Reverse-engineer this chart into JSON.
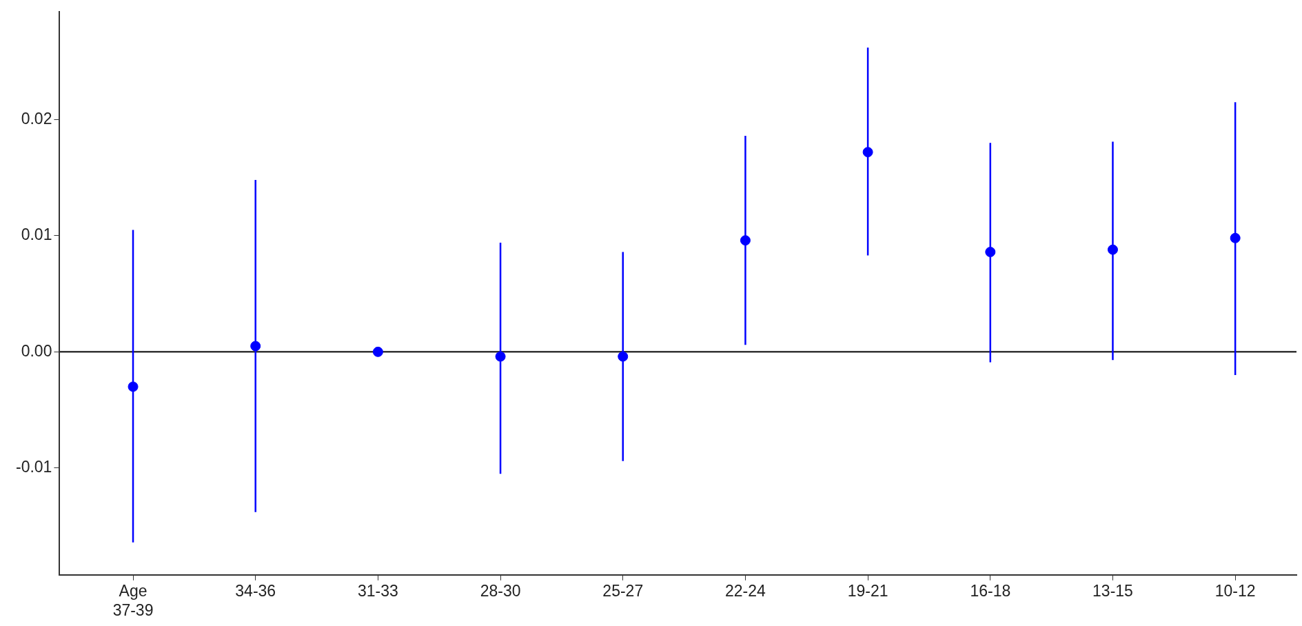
{
  "chart_data": {
    "type": "scatter",
    "categories": [
      "Age\n37-39",
      "34-36",
      "31-33",
      "28-30",
      "25-27",
      "22-24",
      "19-21",
      "16-18",
      "13-15",
      "10-12"
    ],
    "series": [
      {
        "color": "#0000ff",
        "values": [
          -0.003,
          0.0005,
          0,
          -0.0004,
          -0.0004,
          0.0096,
          0.0172,
          0.0086,
          0.0088,
          0.0098
        ],
        "errors": [
          [
            -0.0164,
            0.0105
          ],
          [
            -0.0138,
            0.0148
          ],
          null,
          [
            -0.0105,
            0.0094
          ],
          [
            -0.0094,
            0.0086
          ],
          [
            0.0006,
            0.0186
          ],
          [
            0.0083,
            0.0262
          ],
          [
            -0.0009,
            0.018
          ],
          [
            -0.0007,
            0.0181
          ],
          [
            -0.002,
            0.0215
          ]
        ]
      }
    ],
    "ylim": [
      -0.0192,
      0.0293
    ],
    "yticks": [
      {
        "value": -0.01,
        "label": "-0.01"
      },
      {
        "value": 0,
        "label": "0.00"
      },
      {
        "value": 0.01,
        "label": "0.01"
      },
      {
        "value": 0.02,
        "label": "0.02"
      }
    ],
    "ref_lines": [
      {
        "axis": "y",
        "value": 0,
        "color": "#333333"
      }
    ],
    "grid": false,
    "legend": false,
    "marker": "circle"
  }
}
